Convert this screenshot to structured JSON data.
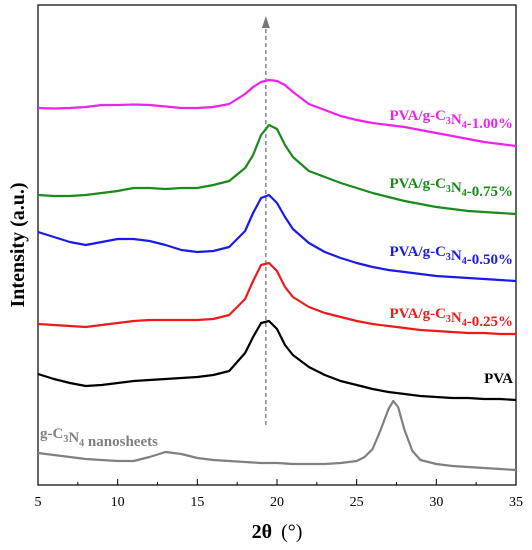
{
  "chart_data": {
    "type": "line",
    "title": "",
    "xlabel_main": "2θ",
    "xlabel_unit": "(°)",
    "ylabel": "Intensity (a.u.)",
    "xlim": [
      5,
      35
    ],
    "xticks": [
      5,
      10,
      15,
      20,
      25,
      30,
      35
    ],
    "yticks_labeled": false,
    "y_unit": "arbitrary (offset stacked)",
    "grid": false,
    "legend": "inline labels at right",
    "reference_line_x": 19.3,
    "series": [
      {
        "name": "PVA/g-C3N4-1.00%",
        "label_parts": {
          "a": "PVA/g-C",
          "s1": "3",
          "b": "N",
          "s2": "4",
          "c": "-1.00%"
        },
        "color": "#ee22ee",
        "x": [
          5,
          6,
          7,
          8,
          9,
          10,
          11,
          12,
          13,
          14,
          15,
          16,
          17,
          18,
          18.5,
          19,
          19.5,
          20,
          20.5,
          21,
          22,
          23,
          24,
          25,
          26,
          27,
          28,
          29,
          30,
          31,
          32,
          33,
          34,
          35
        ],
        "y": [
          103,
          103.5,
          103,
          102,
          100,
          100,
          99.5,
          100,
          101.5,
          103,
          103,
          102,
          99,
          89,
          82,
          77,
          75,
          76,
          80,
          87,
          99,
          105,
          111,
          115,
          118,
          120,
          122,
          125,
          128,
          131,
          134,
          137,
          139,
          141
        ]
      },
      {
        "name": "PVA/g-C3N4-0.75%",
        "label_parts": {
          "a": "PVA/g-C",
          "s1": "3",
          "b": "N",
          "s2": "4",
          "c": "-0.75%"
        },
        "color": "#1a8a1a",
        "x": [
          5,
          6,
          7,
          8,
          9,
          10,
          11,
          12,
          13,
          14,
          15,
          16,
          17,
          18,
          18.5,
          19,
          19.5,
          20,
          20.5,
          21,
          22,
          23,
          24,
          25,
          26,
          27,
          28,
          29,
          30,
          31,
          32,
          33,
          34,
          35
        ],
        "y": [
          190,
          191,
          191,
          190,
          188,
          186,
          183,
          183,
          184,
          183,
          183,
          180,
          176,
          163,
          150,
          130,
          120,
          124,
          140,
          152,
          166,
          172,
          178,
          183,
          188,
          192,
          196,
          199,
          202,
          204,
          206,
          207,
          208,
          209
        ]
      },
      {
        "name": "PVA/g-C3N4-0.50%",
        "label_parts": {
          "a": "PVA/g-C",
          "s1": "3",
          "b": "N",
          "s2": "4",
          "c": "-0.50%"
        },
        "color": "#1a1aee",
        "x": [
          5,
          6,
          7,
          8,
          9,
          10,
          11,
          12,
          13,
          14,
          15,
          16,
          17,
          18,
          18.5,
          19,
          19.5,
          20,
          20.5,
          21,
          22,
          23,
          24,
          25,
          26,
          27,
          28,
          29,
          30,
          31,
          32,
          33,
          34,
          35
        ],
        "y": [
          227,
          232,
          237,
          240,
          237,
          234,
          234,
          236,
          240,
          245,
          247,
          246,
          242,
          226,
          208,
          193,
          190,
          198,
          212,
          224,
          238,
          247,
          253,
          258,
          262,
          265,
          267,
          269,
          271,
          272,
          273,
          274,
          275,
          276
        ]
      },
      {
        "name": "PVA/g-C3N4-0.25%",
        "label_parts": {
          "a": "PVA/g-C",
          "s1": "3",
          "b": "N",
          "s2": "4",
          "c": "-0.25%"
        },
        "color": "#ee1a1a",
        "x": [
          5,
          6,
          7,
          8,
          9,
          10,
          11,
          12,
          13,
          14,
          15,
          16,
          17,
          18,
          18.5,
          19,
          19.5,
          20,
          20.5,
          21,
          22,
          23,
          24,
          25,
          26,
          27,
          28,
          29,
          30,
          31,
          32,
          33,
          34,
          35
        ],
        "y": [
          319,
          320,
          321,
          322,
          320,
          318,
          316,
          315,
          315,
          315,
          315,
          314,
          310,
          294,
          276,
          260,
          258,
          266,
          282,
          292,
          302,
          308,
          312,
          316,
          319,
          321,
          323,
          325,
          326,
          327,
          328,
          328,
          329,
          329
        ]
      },
      {
        "name": "PVA",
        "label_parts": {
          "a": "PVA",
          "s1": "",
          "b": "",
          "s2": "",
          "c": ""
        },
        "color": "#000000",
        "x": [
          5,
          6,
          7,
          8,
          9,
          10,
          11,
          12,
          13,
          14,
          15,
          16,
          17,
          18,
          18.5,
          19,
          19.5,
          20,
          20.5,
          21,
          22,
          23,
          24,
          25,
          26,
          27,
          28,
          29,
          30,
          31,
          32,
          33,
          34,
          35
        ],
        "y": [
          369,
          374,
          378,
          381,
          380,
          378,
          376,
          375,
          374,
          373,
          372,
          370,
          366,
          348,
          332,
          318,
          316,
          324,
          340,
          350,
          362,
          370,
          376,
          380,
          384,
          387,
          389,
          391,
          392,
          393,
          393,
          394,
          394,
          395
        ]
      },
      {
        "name": "g-C3N4 nanosheets",
        "label_parts": {
          "a": "g-C",
          "s1": "3",
          "b": "N",
          "s2": "4",
          "c": " nanosheets"
        },
        "color": "#808080",
        "x": [
          5,
          6,
          7,
          8,
          9,
          10,
          11,
          12,
          13,
          14,
          15,
          16,
          17,
          18,
          19,
          20,
          21,
          22,
          23,
          24,
          25,
          25.5,
          26,
          26.5,
          27,
          27.3,
          27.6,
          28,
          28.5,
          29,
          30,
          31,
          32,
          33,
          34,
          35
        ],
        "y": [
          448,
          450,
          452,
          454,
          455,
          456,
          456,
          452,
          447,
          449,
          453,
          455,
          456,
          457,
          458,
          458,
          459,
          459,
          459,
          458,
          456,
          452,
          444,
          425,
          404,
          396,
          402,
          425,
          446,
          455,
          459,
          461,
          462,
          463,
          464,
          465
        ]
      }
    ]
  }
}
